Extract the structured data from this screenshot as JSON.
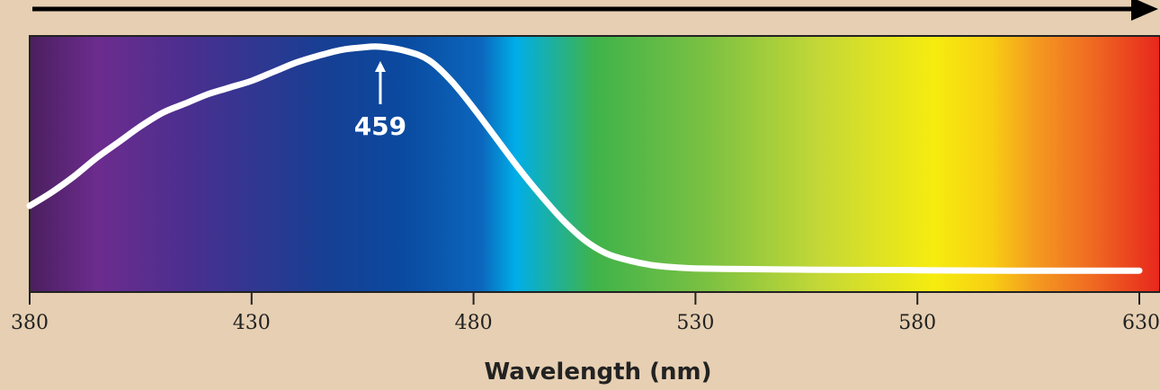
{
  "chart_data": {
    "type": "line",
    "title": "",
    "xlabel": "Wavelength (nm)",
    "ylabel": "",
    "xlim": [
      380,
      630
    ],
    "xticks": [
      380,
      430,
      480,
      530,
      580,
      630
    ],
    "ylim": [
      0,
      1
    ],
    "grid": false,
    "legend": "none",
    "series": [
      {
        "x": [
          380,
          385,
          390,
          395,
          400,
          405,
          410,
          415,
          420,
          425,
          430,
          435,
          440,
          445,
          450,
          455,
          459,
          465,
          470,
          475,
          480,
          485,
          490,
          495,
          500,
          505,
          510,
          515,
          520,
          525,
          530,
          540,
          550,
          560,
          570,
          580,
          590,
          600,
          610,
          620,
          630
        ],
        "y": [
          0.3,
          0.36,
          0.43,
          0.51,
          0.58,
          0.65,
          0.71,
          0.75,
          0.79,
          0.82,
          0.85,
          0.89,
          0.93,
          0.96,
          0.985,
          0.997,
          1.0,
          0.98,
          0.94,
          0.85,
          0.73,
          0.6,
          0.47,
          0.35,
          0.24,
          0.15,
          0.09,
          0.06,
          0.04,
          0.03,
          0.025,
          0.022,
          0.02,
          0.019,
          0.018,
          0.017,
          0.016,
          0.015,
          0.015,
          0.015,
          0.015
        ]
      }
    ],
    "annotations": [
      {
        "x": 459,
        "text": "459"
      }
    ]
  },
  "colors": {
    "background": "#e6cfb2",
    "curve": "#ffffff",
    "spectrum_stops": [
      "#4b1f5e",
      "#6c2c8e",
      "#4a2f8f",
      "#173f93",
      "#0a4aa0",
      "#0b67bd",
      "#00aee8",
      "#3fb34a",
      "#7cc142",
      "#c5d836",
      "#f6ec10",
      "#f8cf12",
      "#f49a20",
      "#ef6a22",
      "#e8261d"
    ]
  }
}
